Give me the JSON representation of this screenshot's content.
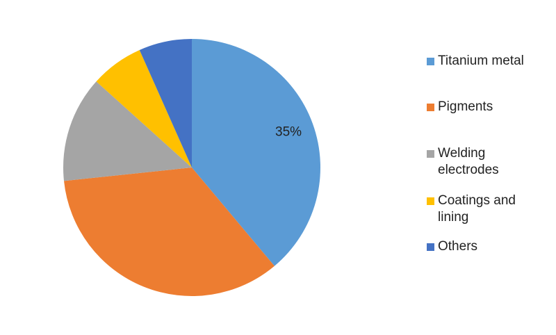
{
  "chart_data": {
    "type": "pie",
    "categories": [
      "Titanium metal",
      "Pigments",
      "Welding electrodes",
      "Coatings and lining",
      "Others"
    ],
    "values": [
      35,
      31,
      12,
      6,
      6
    ],
    "value_labels": [
      "35%",
      null,
      null,
      null,
      null
    ],
    "colors": [
      "#5b9bd5",
      "#ed7d31",
      "#a5a5a5",
      "#ffc000",
      "#4472c4"
    ],
    "legend": "right"
  }
}
